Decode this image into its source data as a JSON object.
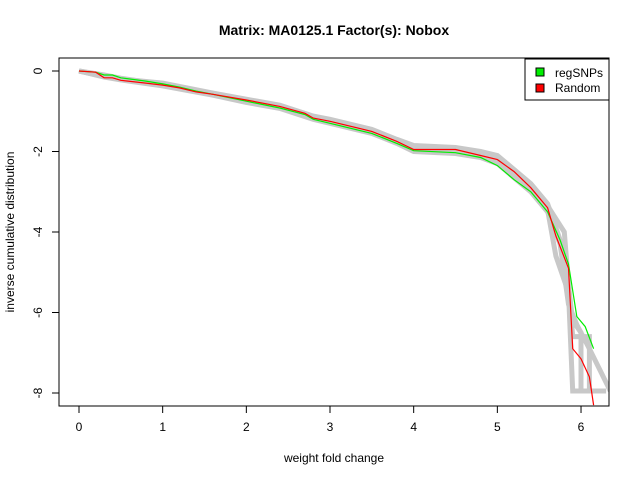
{
  "chart_data": {
    "type": "line",
    "title": "Matrix: MA0125.1 Factor(s): Nobox",
    "xlabel": "weight fold change",
    "ylabel": "inverse cumulative distribution",
    "xlim": [
      -0.25,
      6.35
    ],
    "ylim": [
      -8.3,
      0.3
    ],
    "xticks": [
      0,
      1,
      2,
      3,
      4,
      5,
      6
    ],
    "yticks": [
      0,
      -2,
      -4,
      -6,
      -8
    ],
    "grid": false,
    "legend_position": "top-right",
    "legend": [
      {
        "label": "regSNPs",
        "color": "#00ee00"
      },
      {
        "label": "Random",
        "color": "#ff0000"
      }
    ],
    "series": [
      {
        "name": "regSNPs",
        "color": "#00ee00",
        "x": [
          0,
          0.2,
          0.3,
          0.4,
          0.5,
          0.8,
          1.0,
          1.2,
          1.4,
          1.6,
          2.0,
          2.4,
          2.7,
          2.8,
          3.0,
          3.5,
          3.8,
          4.0,
          4.5,
          4.8,
          5.0,
          5.2,
          5.4,
          5.6,
          5.75,
          5.85,
          5.95,
          6.05,
          6.15
        ],
        "y": [
          0,
          -0.03,
          -0.1,
          -0.1,
          -0.17,
          -0.25,
          -0.32,
          -0.4,
          -0.5,
          -0.58,
          -0.75,
          -0.92,
          -1.08,
          -1.2,
          -1.3,
          -1.55,
          -1.8,
          -1.98,
          -2.03,
          -2.15,
          -2.35,
          -2.7,
          -3.0,
          -3.5,
          -4.2,
          -4.8,
          -6.1,
          -6.35,
          -6.9
        ]
      },
      {
        "name": "Random",
        "color": "#ff0000",
        "x": [
          0,
          0.2,
          0.3,
          0.4,
          0.5,
          0.8,
          1.0,
          1.2,
          1.4,
          1.6,
          2.0,
          2.4,
          2.7,
          2.8,
          3.0,
          3.5,
          3.8,
          4.0,
          4.5,
          4.8,
          5.0,
          5.2,
          5.4,
          5.6,
          5.7,
          5.85,
          5.9,
          6.0,
          6.1,
          6.15
        ],
        "y": [
          0,
          -0.03,
          -0.17,
          -0.17,
          -0.23,
          -0.3,
          -0.35,
          -0.42,
          -0.52,
          -0.58,
          -0.72,
          -0.88,
          -1.05,
          -1.17,
          -1.25,
          -1.5,
          -1.75,
          -1.95,
          -1.95,
          -2.1,
          -2.2,
          -2.5,
          -2.9,
          -3.4,
          -4.1,
          -4.9,
          -6.9,
          -7.15,
          -7.6,
          -8.3
        ]
      }
    ],
    "background_series": [
      {
        "name": "random-sample-1",
        "color": "#bebebe",
        "x": [
          0,
          0.3,
          0.5,
          1.0,
          1.6,
          2.0,
          2.4,
          2.8,
          3.0,
          3.5,
          3.8,
          4.0,
          4.5,
          4.8,
          5.0,
          5.4,
          5.6,
          5.8,
          5.9,
          6.0,
          6.0,
          6.3
        ],
        "y": [
          0,
          -0.12,
          -0.2,
          -0.3,
          -0.55,
          -0.7,
          -0.85,
          -1.12,
          -1.2,
          -1.45,
          -1.7,
          -1.85,
          -1.9,
          -2.0,
          -2.1,
          -2.8,
          -3.3,
          -4.5,
          -6.2,
          -6.5,
          -7.95,
          -7.95
        ]
      },
      {
        "name": "random-sample-2",
        "color": "#bebebe",
        "x": [
          0,
          0.3,
          0.5,
          1.0,
          1.6,
          2.0,
          2.4,
          2.8,
          3.0,
          3.5,
          3.8,
          4.0,
          4.5,
          4.8,
          5.0,
          5.4,
          5.6,
          5.75,
          5.85,
          5.95,
          6.1,
          6.35
        ],
        "y": [
          0,
          -0.15,
          -0.22,
          -0.37,
          -0.6,
          -0.78,
          -0.93,
          -1.2,
          -1.3,
          -1.55,
          -1.8,
          -2.0,
          -2.05,
          -2.15,
          -2.3,
          -3.0,
          -3.5,
          -4.3,
          -5.8,
          -6.3,
          -6.9,
          -7.95
        ]
      },
      {
        "name": "random-sample-3",
        "color": "#bebebe",
        "x": [
          0,
          0.3,
          0.5,
          1.0,
          1.6,
          2.0,
          2.4,
          2.8,
          3.0,
          3.5,
          3.8,
          4.0,
          4.5,
          4.8,
          5.0,
          5.4,
          5.6,
          5.8,
          5.9,
          6.1,
          6.1
        ],
        "y": [
          0,
          -0.1,
          -0.18,
          -0.33,
          -0.56,
          -0.73,
          -0.88,
          -1.15,
          -1.24,
          -1.47,
          -1.72,
          -1.9,
          -1.92,
          -2.05,
          -2.15,
          -2.85,
          -3.35,
          -4.0,
          -6.6,
          -6.6,
          -7.95
        ]
      },
      {
        "name": "random-sample-4",
        "color": "#bebebe",
        "x": [
          0,
          0.3,
          0.5,
          1.0,
          1.6,
          2.0,
          2.4,
          2.8,
          3.0,
          3.5,
          3.8,
          4.0,
          4.5,
          4.8,
          5.0,
          5.4,
          5.6,
          5.7,
          5.85,
          5.9,
          6.1
        ],
        "y": [
          0,
          -0.14,
          -0.21,
          -0.34,
          -0.57,
          -0.74,
          -0.9,
          -1.16,
          -1.26,
          -1.5,
          -1.76,
          -1.93,
          -1.97,
          -2.08,
          -2.22,
          -2.9,
          -3.45,
          -4.6,
          -5.5,
          -7.95,
          -7.95
        ]
      }
    ]
  }
}
